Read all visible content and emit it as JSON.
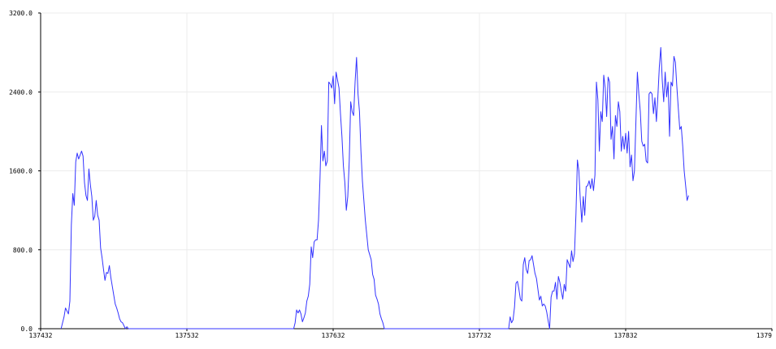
{
  "chart_data": {
    "type": "line",
    "title": "",
    "xlabel": "",
    "ylabel": "",
    "xlim": [
      137432,
      137932
    ],
    "ylim": [
      0,
      3200
    ],
    "grid": true,
    "legend": "none",
    "line_color": "#3333ff",
    "x_ticks": [
      "137432",
      "137532",
      "137632",
      "137732",
      "137832",
      "1379"
    ],
    "y_ticks": [
      "0.0",
      "800.0",
      "1600.0",
      "2400.0",
      "3200.0"
    ],
    "series": [
      {
        "points": [
          [
            137446,
            0
          ],
          [
            137448,
            120
          ],
          [
            137449,
            210
          ],
          [
            137450,
            180
          ],
          [
            137451,
            150
          ],
          [
            137452,
            280
          ],
          [
            137453,
            1050
          ],
          [
            137454,
            1370
          ],
          [
            137455,
            1250
          ],
          [
            137456,
            1690
          ],
          [
            137457,
            1780
          ],
          [
            137458,
            1720
          ],
          [
            137459,
            1760
          ],
          [
            137460,
            1800
          ],
          [
            137461,
            1750
          ],
          [
            137462,
            1480
          ],
          [
            137463,
            1350
          ],
          [
            137464,
            1300
          ],
          [
            137465,
            1620
          ],
          [
            137466,
            1460
          ],
          [
            137467,
            1340
          ],
          [
            137468,
            1100
          ],
          [
            137469,
            1140
          ],
          [
            137470,
            1300
          ],
          [
            137471,
            1150
          ],
          [
            137472,
            1100
          ],
          [
            137473,
            820
          ],
          [
            137474,
            720
          ],
          [
            137475,
            600
          ],
          [
            137476,
            490
          ],
          [
            137477,
            570
          ],
          [
            137478,
            560
          ],
          [
            137479,
            640
          ],
          [
            137480,
            520
          ],
          [
            137481,
            430
          ],
          [
            137482,
            340
          ],
          [
            137483,
            250
          ],
          [
            137484,
            210
          ],
          [
            137485,
            160
          ],
          [
            137486,
            100
          ],
          [
            137487,
            70
          ],
          [
            137488,
            60
          ],
          [
            137489,
            30
          ],
          [
            137490,
            0
          ],
          [
            137491,
            20
          ],
          [
            137492,
            0
          ],
          [
            137605,
            0
          ],
          [
            137606,
            60
          ],
          [
            137607,
            190
          ],
          [
            137608,
            160
          ],
          [
            137609,
            190
          ],
          [
            137610,
            150
          ],
          [
            137611,
            70
          ],
          [
            137612,
            110
          ],
          [
            137613,
            160
          ],
          [
            137614,
            280
          ],
          [
            137615,
            330
          ],
          [
            137616,
            450
          ],
          [
            137617,
            830
          ],
          [
            137618,
            720
          ],
          [
            137619,
            880
          ],
          [
            137620,
            900
          ],
          [
            137621,
            900
          ],
          [
            137622,
            1100
          ],
          [
            137623,
            1520
          ],
          [
            137624,
            2060
          ],
          [
            137625,
            1700
          ],
          [
            137626,
            1800
          ],
          [
            137627,
            1650
          ],
          [
            137628,
            1700
          ],
          [
            137629,
            2500
          ],
          [
            137630,
            2480
          ],
          [
            137631,
            2440
          ],
          [
            137632,
            2560
          ],
          [
            137633,
            2280
          ],
          [
            137634,
            2600
          ],
          [
            137635,
            2520
          ],
          [
            137636,
            2440
          ],
          [
            137637,
            2180
          ],
          [
            137638,
            1950
          ],
          [
            137639,
            1650
          ],
          [
            137640,
            1480
          ],
          [
            137641,
            1200
          ],
          [
            137642,
            1340
          ],
          [
            137643,
            1700
          ],
          [
            137644,
            2300
          ],
          [
            137645,
            2200
          ],
          [
            137646,
            2160
          ],
          [
            137647,
            2500
          ],
          [
            137648,
            2750
          ],
          [
            137649,
            2380
          ],
          [
            137650,
            2200
          ],
          [
            137651,
            1800
          ],
          [
            137652,
            1500
          ],
          [
            137653,
            1300
          ],
          [
            137654,
            1100
          ],
          [
            137655,
            950
          ],
          [
            137656,
            800
          ],
          [
            137657,
            750
          ],
          [
            137658,
            700
          ],
          [
            137659,
            550
          ],
          [
            137660,
            500
          ],
          [
            137661,
            340
          ],
          [
            137662,
            300
          ],
          [
            137663,
            250
          ],
          [
            137664,
            150
          ],
          [
            137665,
            100
          ],
          [
            137666,
            60
          ],
          [
            137667,
            0
          ],
          [
            137752,
            0
          ],
          [
            137753,
            120
          ],
          [
            137754,
            60
          ],
          [
            137755,
            90
          ],
          [
            137756,
            220
          ],
          [
            137757,
            460
          ],
          [
            137758,
            480
          ],
          [
            137759,
            400
          ],
          [
            137760,
            300
          ],
          [
            137761,
            280
          ],
          [
            137762,
            650
          ],
          [
            137763,
            720
          ],
          [
            137764,
            600
          ],
          [
            137765,
            560
          ],
          [
            137766,
            690
          ],
          [
            137767,
            700
          ],
          [
            137768,
            740
          ],
          [
            137769,
            650
          ],
          [
            137770,
            560
          ],
          [
            137771,
            510
          ],
          [
            137772,
            400
          ],
          [
            137773,
            290
          ],
          [
            137774,
            330
          ],
          [
            137775,
            230
          ],
          [
            137776,
            250
          ],
          [
            137777,
            230
          ],
          [
            137778,
            170
          ],
          [
            137779,
            80
          ],
          [
            137780,
            0
          ],
          [
            137781,
            320
          ],
          [
            137782,
            380
          ],
          [
            137783,
            380
          ],
          [
            137784,
            470
          ],
          [
            137785,
            300
          ],
          [
            137786,
            530
          ],
          [
            137787,
            470
          ],
          [
            137788,
            380
          ],
          [
            137789,
            300
          ],
          [
            137790,
            450
          ],
          [
            137791,
            380
          ],
          [
            137792,
            700
          ],
          [
            137793,
            660
          ],
          [
            137794,
            620
          ],
          [
            137795,
            790
          ],
          [
            137796,
            680
          ],
          [
            137797,
            760
          ],
          [
            137798,
            1160
          ],
          [
            137799,
            1710
          ],
          [
            137800,
            1600
          ],
          [
            137801,
            1300
          ],
          [
            137802,
            1080
          ],
          [
            137803,
            1340
          ],
          [
            137804,
            1150
          ],
          [
            137805,
            1440
          ],
          [
            137806,
            1450
          ],
          [
            137807,
            1500
          ],
          [
            137808,
            1420
          ],
          [
            137809,
            1520
          ],
          [
            137810,
            1400
          ],
          [
            137811,
            1560
          ],
          [
            137812,
            2500
          ],
          [
            137813,
            2320
          ],
          [
            137814,
            1800
          ],
          [
            137815,
            2200
          ],
          [
            137816,
            2100
          ],
          [
            137817,
            2570
          ],
          [
            137818,
            2440
          ],
          [
            137819,
            2150
          ],
          [
            137820,
            2550
          ],
          [
            137821,
            2500
          ],
          [
            137822,
            1920
          ],
          [
            137823,
            2050
          ],
          [
            137824,
            1720
          ],
          [
            137825,
            2160
          ],
          [
            137826,
            2050
          ],
          [
            137827,
            2300
          ],
          [
            137828,
            2200
          ],
          [
            137829,
            1800
          ],
          [
            137830,
            1950
          ],
          [
            137831,
            1820
          ],
          [
            137832,
            1980
          ],
          [
            137833,
            1780
          ],
          [
            137834,
            2000
          ],
          [
            137835,
            1640
          ],
          [
            137836,
            1760
          ],
          [
            137837,
            1500
          ],
          [
            137838,
            1600
          ],
          [
            137839,
            2100
          ],
          [
            137840,
            2600
          ],
          [
            137841,
            2380
          ],
          [
            137842,
            2200
          ],
          [
            137843,
            1900
          ],
          [
            137844,
            1850
          ],
          [
            137845,
            1870
          ],
          [
            137846,
            1700
          ],
          [
            137847,
            1680
          ],
          [
            137848,
            2380
          ],
          [
            137849,
            2400
          ],
          [
            137850,
            2380
          ],
          [
            137851,
            2180
          ],
          [
            137852,
            2340
          ],
          [
            137853,
            2100
          ],
          [
            137854,
            2350
          ],
          [
            137855,
            2650
          ],
          [
            137856,
            2850
          ],
          [
            137857,
            2520
          ],
          [
            137858,
            2300
          ],
          [
            137859,
            2600
          ],
          [
            137860,
            2350
          ],
          [
            137861,
            2500
          ],
          [
            137862,
            1950
          ],
          [
            137863,
            2500
          ],
          [
            137864,
            2460
          ],
          [
            137865,
            2760
          ],
          [
            137866,
            2700
          ],
          [
            137867,
            2450
          ],
          [
            137868,
            2230
          ],
          [
            137869,
            2020
          ],
          [
            137870,
            2050
          ],
          [
            137871,
            1850
          ],
          [
            137872,
            1600
          ],
          [
            137873,
            1450
          ],
          [
            137874,
            1300
          ],
          [
            137875,
            1350
          ]
        ]
      }
    ]
  }
}
